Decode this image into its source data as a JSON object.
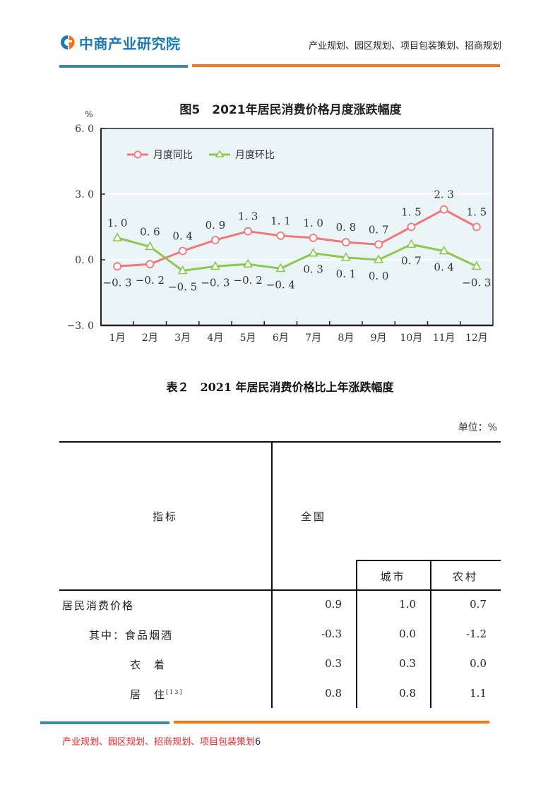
{
  "header": {
    "logo_text": "中商产业研究院",
    "tagline": "产业规划、园区规划、项目包装策划、招商规划",
    "colors": {
      "logo_blue": "#1e78b4",
      "logo_orange": "#f57520",
      "bar_teal": "#3a8aa0",
      "bar_orange": "#f57520"
    }
  },
  "chart_data": {
    "type": "line",
    "title": "图5　2021年居民消费价格月度涨跌幅度",
    "ylabel": "%",
    "xlabel": "",
    "ylim": [
      -3.0,
      6.0
    ],
    "yticks": [
      "6.0",
      "3.0",
      "0.0",
      "-3.0"
    ],
    "categories": [
      "1月",
      "2月",
      "3月",
      "4月",
      "5月",
      "6月",
      "7月",
      "8月",
      "9月",
      "10月",
      "11月",
      "12月"
    ],
    "series": [
      {
        "name": "月度同比",
        "color": "#f07878",
        "marker": "circle",
        "values": [
          -0.3,
          -0.2,
          0.4,
          0.9,
          1.3,
          1.1,
          1.0,
          0.8,
          0.7,
          1.5,
          2.3,
          1.5
        ],
        "labels": [
          "-0.3",
          "-0.2",
          "0.4",
          "0.9",
          "1.3",
          "1.1",
          "1.0",
          "0.8",
          "0.7",
          "1.5",
          "2.3",
          "1.5"
        ]
      },
      {
        "name": "月度环比",
        "color": "#8cc84b",
        "marker": "triangle",
        "values": [
          1.0,
          0.6,
          -0.5,
          -0.3,
          -0.2,
          -0.4,
          0.3,
          0.1,
          0.0,
          0.7,
          0.4,
          -0.3
        ],
        "labels": [
          "1.0",
          "0.6",
          "-0.5",
          "-0.3",
          "-0.2",
          "-0.4",
          "0.3",
          "0.1",
          "0.0",
          "0.7",
          "0.4",
          "-0.3"
        ]
      }
    ],
    "legend_position": "top-left inside",
    "grid": "horizontal white lines at 0.0 and 3.0",
    "plot_background": "#ebf4f8"
  },
  "table": {
    "title": "表２　2021 年居民消费价格比上年涨跌幅度",
    "unit": "单位：%",
    "headers": {
      "indicator": "指标",
      "national": "全国",
      "urban": "城市",
      "rural": "农村"
    },
    "rows": [
      {
        "indicator": "居民消费价格",
        "national": "0.9",
        "urban": "1.0",
        "rural": "0.7"
      },
      {
        "indicator": "其中：食品烟酒",
        "national": "-0.3",
        "urban": "0.0",
        "rural": "-1.2"
      },
      {
        "indicator": "衣　着",
        "national": "0.3",
        "urban": "0.3",
        "rural": "0.0"
      },
      {
        "indicator": "居　住",
        "footnote": "[13]",
        "national": "0.8",
        "urban": "0.8",
        "rural": "1.1"
      }
    ]
  },
  "footer": {
    "text": "产业规划、园区规划、招商规划、项目包装策划",
    "page_number": "6"
  }
}
